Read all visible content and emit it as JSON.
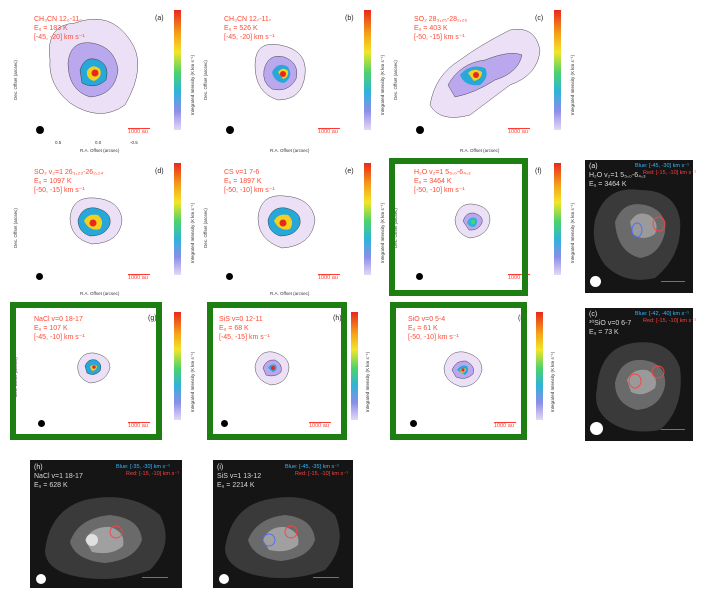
{
  "common": {
    "xlabel": "R.A. Offset (arcsec)",
    "ylabel": "Dec. Offset (arcsec)",
    "cbar_label": "Integrated Intensity (K km s⁻¹)",
    "scale": "1000 au",
    "x_ticks": [
      "0.5",
      "0.0",
      "-0.5"
    ],
    "y_ticks": [
      "0.5",
      "0.0",
      "-0.5"
    ]
  },
  "panels": {
    "a": {
      "letter": "(a)",
      "l1": "CH₃CN 12₀-11₀",
      "l2": "Eᵤ = 183 K",
      "l3": "[-45, -20] km s⁻¹",
      "cticks": [
        "2500",
        "2000",
        "1500",
        "1000",
        "500"
      ]
    },
    "b": {
      "letter": "(b)",
      "l1": "CH₃CN 12₇-11₇",
      "l2": "Eᵤ = 526 K",
      "l3": "[-45, -20] km s⁻¹",
      "cticks": [
        "3000",
        "2500",
        "2000",
        "1500",
        "1000",
        "500"
      ]
    },
    "c": {
      "letter": "(c)",
      "l1": "SO₂ 28₃,₂₅-28₂,₂₆",
      "l2": "Eᵤ = 403 K",
      "l3": "[-50, -15] km s⁻¹",
      "cticks": [
        "2500",
        "2000",
        "1500",
        "1000",
        "500"
      ]
    },
    "d": {
      "letter": "(d)",
      "l1": "SO₂ v₂=1 26₃,₂₃-26₂,₂₄",
      "l2": "Eᵤ = 1097 K",
      "l3": "[-50, -15] km s⁻¹",
      "cticks": [
        "2000",
        "1500",
        "1000",
        "500"
      ]
    },
    "e": {
      "letter": "(e)",
      "l1": "CS v=1 7-6",
      "l2": "Eᵤ = 1897 K",
      "l3": "[-50, -10] km s⁻¹",
      "cticks": [
        "2000",
        "1500",
        "1000",
        "500"
      ]
    },
    "f": {
      "letter": "(f)",
      "l1": "H₂O v₂=1 5₅,₀-6₄,₃",
      "l2": "Eᵤ = 3464 K",
      "l3": "[-50, -10] km s⁻¹",
      "cticks": [
        "1500",
        "1000",
        "500"
      ]
    },
    "g": {
      "letter": "(g)",
      "l1": "NaCl v=0 18-17",
      "l2": "Eᵤ = 107 K",
      "l3": "[-45, -10] km s⁻¹",
      "cticks": [
        "700",
        "600",
        "500",
        "400",
        "300",
        "200",
        "100"
      ]
    },
    "h": {
      "letter": "(h)",
      "l1": "SiS v=0 12-11",
      "l2": "Eᵤ = 68 K",
      "l3": "[-45, -15] km s⁻¹",
      "cticks": [
        "1600",
        "1400",
        "1200",
        "1000",
        "800",
        "600",
        "400",
        "200"
      ]
    },
    "i": {
      "letter": "(i)",
      "l1": "SiO v=0 5-4",
      "l2": "Eᵤ = 61 K",
      "l3": "[-50, -10] km s⁻¹",
      "cticks": [
        "5000",
        "4000",
        "3000",
        "2000",
        "1000"
      ]
    },
    "side1": {
      "letter": "(a)",
      "l1": "H₂O v₂=1 5₅,₀-6₄,₃",
      "l2": "Eᵤ = 3464 K",
      "blue": "Blue: [-45, -30] km s⁻¹",
      "red": "Red: [-15, -10] km s⁻¹"
    },
    "side2": {
      "letter": "(c)",
      "l1": "³⁰SiO v=0 6-7",
      "l2": "Eᵤ = 73 K",
      "blue": "Blue: [-42, -40] km s⁻¹",
      "red": "Red: [-15, -10] km s⁻¹"
    },
    "j": {
      "letter": "(h)",
      "l1": "NaCl v=1 18-17",
      "l2": "Eᵤ = 628 K",
      "blue": "Blue: [-35, -30] km s⁻¹",
      "red": "Red: [-15, -10] km s⁻¹"
    },
    "k": {
      "letter": "(i)",
      "l1": "SiS v=1 13-12",
      "l2": "Eᵤ = 2214 K",
      "blue": "Blue: [-45, -35] km s⁻¹",
      "red": "Red: [-15, -10] km s⁻¹"
    }
  },
  "colors": {
    "label_red": "#ff4a35",
    "highlight_green": "#1d7f12",
    "blue": "#39b6ff"
  }
}
